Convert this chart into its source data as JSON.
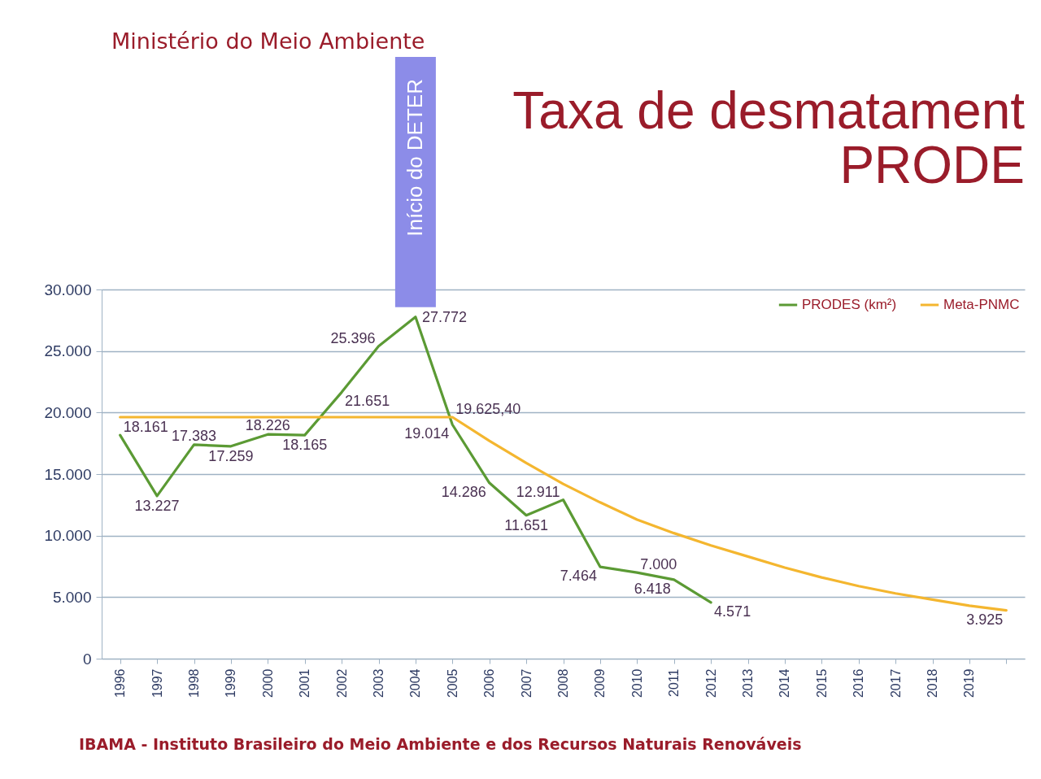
{
  "chart_data": {
    "type": "line",
    "title": "Taxa de desmatament",
    "subtitle": "PRODE",
    "categories": [
      "1996",
      "1997",
      "1998",
      "1999",
      "2000",
      "2001",
      "2002",
      "2003",
      "2004",
      "2005",
      "2006",
      "2007",
      "2008",
      "2009",
      "2010",
      "2011",
      "2012",
      "2013",
      "2014",
      "2015",
      "2016",
      "2017",
      "2018",
      "2019",
      null
    ],
    "series": [
      {
        "name": "PRODES (km²)",
        "color": "#5b9a34",
        "values": [
          18161,
          13227,
          17383,
          17259,
          18226,
          18165,
          21651,
          25396,
          27772,
          19014,
          14286,
          11651,
          12911,
          7464,
          7000,
          6418,
          4571,
          null,
          null,
          null,
          null,
          null,
          null,
          null,
          null
        ],
        "value_labels": [
          "18.161",
          "13.227",
          "17.383",
          "17.259",
          "18.226",
          "18.165",
          "21.651",
          "25.396",
          "27.772",
          "19.014",
          "14.286",
          "11.651",
          "12.911",
          "7.464",
          "7.000",
          "6.418",
          "4.571",
          null,
          null,
          null,
          null,
          null,
          null,
          null,
          null
        ]
      },
      {
        "name": "Meta-PNMC",
        "color": "#f4b62f",
        "values": [
          19625.4,
          19625.4,
          19625.4,
          19625.4,
          19625.4,
          19625.4,
          19625.4,
          19625.4,
          19625.4,
          19625.4,
          17700,
          15900,
          14200,
          12700,
          11300,
          10200,
          9200,
          8300,
          7400,
          6600,
          5900,
          5300,
          4800,
          4300,
          3925
        ],
        "value_labels": [
          null,
          null,
          null,
          null,
          null,
          null,
          null,
          null,
          null,
          "19.625,40",
          null,
          null,
          null,
          null,
          null,
          null,
          null,
          null,
          null,
          null,
          null,
          null,
          null,
          null,
          "3.925"
        ]
      }
    ],
    "ylim": [
      0,
      30000
    ],
    "yticks": [
      0,
      {
        "value": 5000,
        "label": "5.000"
      },
      {
        "value": 10000,
        "label": "10.000"
      },
      {
        "value": 15000,
        "label": "15.000"
      },
      {
        "value": 20000,
        "label": "20.000"
      },
      {
        "value": 25000,
        "label": "25.000"
      },
      {
        "value": 30000,
        "label": "30.000"
      }
    ],
    "grid": "y",
    "legend": "top right",
    "annotations": [
      "Ministério do Meio Ambiente",
      "Início do DETER",
      "IBAMA - Instituto Brasileiro do Meio Ambiente e dos Recursos Naturais Renováveis"
    ]
  }
}
